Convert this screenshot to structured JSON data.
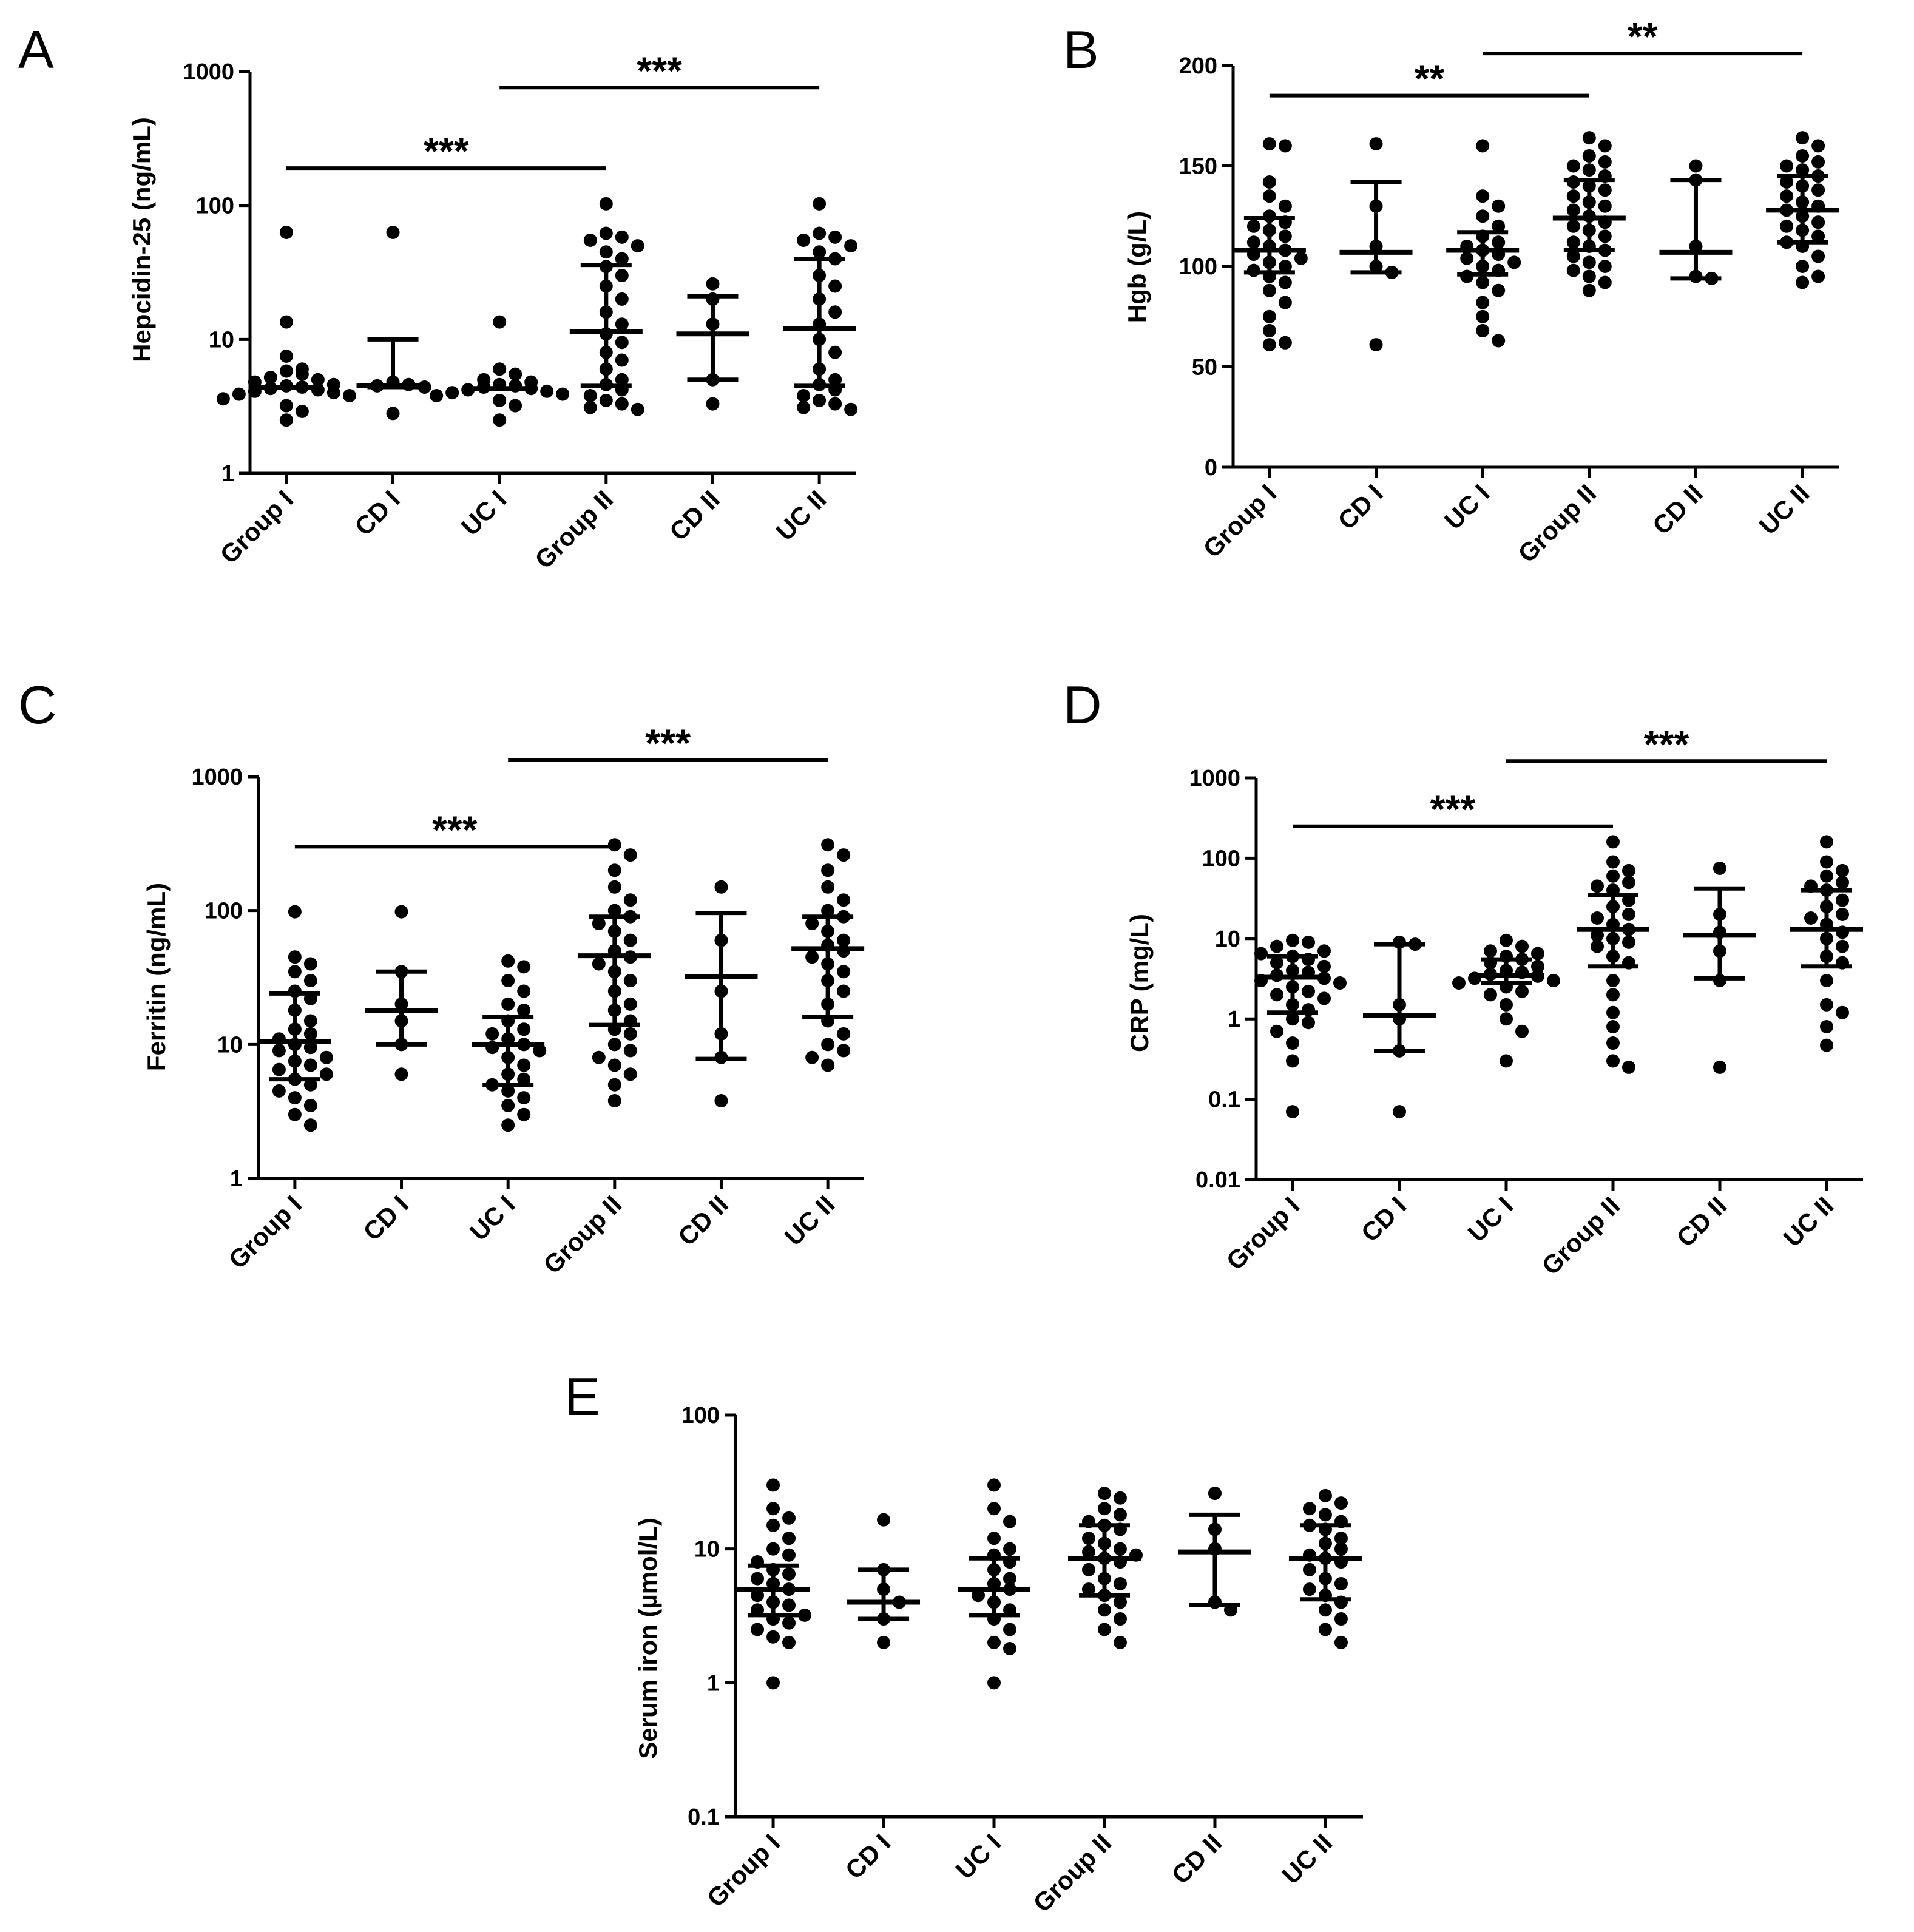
{
  "chart_data": [
    {
      "panel": "A",
      "type": "scatter",
      "ylabel": "Hepcidin-25 (ng/mL)",
      "yscale": "log",
      "ylim": [
        1,
        1000
      ],
      "yticks": [
        {
          "v": 1,
          "t": "1"
        },
        {
          "v": 10,
          "t": "10"
        },
        {
          "v": 100,
          "t": "100"
        },
        {
          "v": 1000,
          "t": "1000"
        }
      ],
      "categories": [
        "Group I",
        "CD I",
        "UC I",
        "Group II",
        "CD II",
        "UC II"
      ],
      "groups": [
        {
          "points": [
            63,
            13.5,
            7.5,
            6,
            5.8,
            5.5,
            5.2,
            5,
            4.8,
            4.6,
            4.5,
            4.4,
            4.3,
            4.2,
            4.1,
            4,
            3.9,
            3.8,
            3.6,
            3.2,
            2.9,
            2.5
          ],
          "median": 4.4,
          "q1": null,
          "q3": null
        },
        {
          "points": [
            63,
            4.8,
            4.6,
            4.5,
            4.4,
            2.8
          ],
          "median": 4.5,
          "q1": 4.4,
          "q3": 10
        },
        {
          "points": [
            13.5,
            6,
            5.5,
            5,
            4.8,
            4.6,
            4.5,
            4.4,
            4.3,
            4.2,
            4.1,
            4,
            3.9,
            3.8,
            3.5,
            3.2,
            2.5
          ],
          "median": 4.3,
          "q1": null,
          "q3": null
        },
        {
          "points": [
            103,
            62,
            58,
            55,
            50,
            45,
            40,
            35,
            30,
            25,
            20,
            16,
            13,
            11,
            9.5,
            8,
            7,
            6,
            5,
            4.6,
            4.2,
            3.8,
            3.5,
            3.3,
            3.1,
            3
          ],
          "median": 11.5,
          "q1": 4.5,
          "q3": 36
        },
        {
          "points": [
            26,
            20,
            13,
            5,
            3.3
          ],
          "median": 11,
          "q1": 5,
          "q3": 21
        },
        {
          "points": [
            103,
            62,
            58,
            55,
            50,
            45,
            40,
            30,
            25,
            20,
            16,
            13,
            10,
            8,
            6,
            5,
            4.6,
            4.2,
            3.8,
            3.5,
            3.3,
            3.1,
            3
          ],
          "median": 12,
          "q1": 4.5,
          "q3": 40
        }
      ],
      "brackets": [
        {
          "from": 0,
          "to": 3,
          "y": 190,
          "label": "***"
        },
        {
          "from": 2,
          "to": 5,
          "y": 760,
          "label": "***"
        }
      ]
    },
    {
      "panel": "B",
      "type": "scatter",
      "ylabel": "Hgb (g/L)",
      "yscale": "linear",
      "ylim": [
        0,
        200
      ],
      "yticks": [
        {
          "v": 0,
          "t": "0"
        },
        {
          "v": 50,
          "t": "50"
        },
        {
          "v": 100,
          "t": "100"
        },
        {
          "v": 150,
          "t": "150"
        },
        {
          "v": 200,
          "t": "200"
        }
      ],
      "categories": [
        "Group I",
        "CD I",
        "UC I",
        "Group II",
        "CD II",
        "UC II"
      ],
      "groups": [
        {
          "points": [
            161,
            160,
            142,
            135,
            130,
            125,
            122,
            120,
            118,
            115,
            112,
            110,
            108,
            106,
            104,
            102,
            100,
            98,
            95,
            92,
            88,
            82,
            75,
            68,
            62,
            61
          ],
          "median": 108,
          "q1": 97,
          "q3": 124
        },
        {
          "points": [
            161,
            130,
            110,
            100,
            97,
            61
          ],
          "median": 107,
          "q1": 97,
          "q3": 142
        },
        {
          "points": [
            160,
            135,
            130,
            125,
            120,
            115,
            112,
            110,
            108,
            106,
            104,
            102,
            100,
            98,
            95,
            92,
            88,
            82,
            75,
            68,
            63
          ],
          "median": 108,
          "q1": 96,
          "q3": 117
        },
        {
          "points": [
            164,
            160,
            155,
            152,
            150,
            148,
            145,
            142,
            140,
            138,
            135,
            132,
            130,
            128,
            125,
            122,
            120,
            118,
            115,
            112,
            110,
            108,
            105,
            102,
            100,
            98,
            95,
            92,
            88
          ],
          "median": 124,
          "q1": 108,
          "q3": 143
        },
        {
          "points": [
            150,
            143,
            110,
            95,
            94
          ],
          "median": 107,
          "q1": 94,
          "q3": 143
        },
        {
          "points": [
            164,
            160,
            155,
            152,
            150,
            148,
            145,
            142,
            140,
            138,
            135,
            132,
            130,
            128,
            125,
            122,
            120,
            118,
            115,
            112,
            110,
            105,
            100,
            95,
            92
          ],
          "median": 128,
          "q1": 112,
          "q3": 145
        }
      ],
      "brackets": [
        {
          "from": 0,
          "to": 3,
          "y": 185,
          "label": "**"
        },
        {
          "from": 2,
          "to": 5,
          "y": 206,
          "label": "**"
        }
      ]
    },
    {
      "panel": "C",
      "type": "scatter",
      "ylabel": "Ferritin (ng/mL)",
      "yscale": "log",
      "ylim": [
        1,
        1000
      ],
      "yticks": [
        {
          "v": 1,
          "t": "1"
        },
        {
          "v": 10,
          "t": "10"
        },
        {
          "v": 100,
          "t": "100"
        },
        {
          "v": 1000,
          "t": "1000"
        }
      ],
      "categories": [
        "Group I",
        "CD I",
        "UC I",
        "Group II",
        "CD II",
        "UC II"
      ],
      "groups": [
        {
          "points": [
            98,
            45,
            40,
            35,
            30,
            25,
            22,
            18,
            15,
            13,
            12,
            11,
            10,
            9.5,
            9,
            8,
            7.5,
            7,
            6.5,
            6,
            5.5,
            5,
            4.5,
            4,
            3.5,
            3,
            2.5
          ],
          "median": 10.5,
          "q1": 5.5,
          "q3": 24
        },
        {
          "points": [
            98,
            35,
            20,
            15,
            10,
            6
          ],
          "median": 18,
          "q1": 10,
          "q3": 35
        },
        {
          "points": [
            42,
            38,
            30,
            25,
            20,
            18,
            15,
            13,
            12,
            11,
            10,
            9.5,
            9,
            8,
            7,
            6,
            5.5,
            5,
            4.5,
            4,
            3.5,
            3,
            2.5
          ],
          "median": 10,
          "q1": 5,
          "q3": 16
        },
        {
          "points": [
            310,
            260,
            200,
            150,
            120,
            100,
            90,
            80,
            70,
            60,
            50,
            45,
            40,
            35,
            30,
            25,
            20,
            18,
            15,
            13,
            12,
            10,
            9,
            8,
            7,
            6,
            5,
            3.8
          ],
          "median": 46,
          "q1": 14,
          "q3": 90
        },
        {
          "points": [
            150,
            60,
            25,
            12,
            8,
            3.8
          ],
          "median": 32,
          "q1": 7.8,
          "q3": 96
        },
        {
          "points": [
            310,
            260,
            200,
            150,
            120,
            100,
            90,
            80,
            70,
            60,
            55,
            50,
            45,
            40,
            35,
            30,
            25,
            20,
            15,
            12,
            10,
            9,
            8,
            7
          ],
          "median": 52,
          "q1": 16,
          "q3": 90
        }
      ],
      "brackets": [
        {
          "from": 0,
          "to": 3,
          "y": 300,
          "label": "***"
        },
        {
          "from": 2,
          "to": 5,
          "y": 1330,
          "label": "***"
        }
      ]
    },
    {
      "panel": "D",
      "type": "scatter",
      "ylabel": "CRP (mg/L)",
      "yscale": "log",
      "ylim": [
        0.01,
        1000
      ],
      "yticks": [
        {
          "v": 0.01,
          "t": "0.01"
        },
        {
          "v": 0.1,
          "t": "0.1"
        },
        {
          "v": 1,
          "t": "1"
        },
        {
          "v": 10,
          "t": "10"
        },
        {
          "v": 100,
          "t": "100"
        },
        {
          "v": 1000,
          "t": "1000"
        }
      ],
      "categories": [
        "Group I",
        "CD I",
        "UC I",
        "Group II",
        "CD II",
        "UC II"
      ],
      "groups": [
        {
          "points": [
            9.5,
            9,
            8,
            7,
            6.5,
            6,
            5.5,
            5,
            4.5,
            4,
            3.8,
            3.5,
            3.2,
            3,
            2.8,
            2.5,
            2.2,
            2,
            1.8,
            1.5,
            1.3,
            1,
            0.9,
            0.7,
            0.5,
            0.3,
            0.07
          ],
          "median": 3.3,
          "q1": 1.2,
          "q3": 6
        },
        {
          "points": [
            9,
            8.5,
            1.5,
            1,
            0.4,
            0.07
          ],
          "median": 1.1,
          "q1": 0.4,
          "q3": 8.5
        },
        {
          "points": [
            9.5,
            8,
            7,
            6.5,
            6,
            5.5,
            5,
            4.5,
            4,
            3.8,
            3.6,
            3.4,
            3.2,
            3,
            2.8,
            2.5,
            2.2,
            2,
            1.5,
            1,
            0.7,
            0.3
          ],
          "median": 3.5,
          "q1": 2.8,
          "q3": 5.5
        },
        {
          "points": [
            160,
            90,
            70,
            60,
            50,
            45,
            40,
            30,
            25,
            20,
            18,
            15,
            13,
            11,
            10,
            9,
            8,
            6,
            5,
            3,
            2,
            1.2,
            0.8,
            0.5,
            0.3,
            0.25
          ],
          "median": 13,
          "q1": 4.5,
          "q3": 35
        },
        {
          "points": [
            75,
            20,
            12,
            7,
            3,
            0.25
          ],
          "median": 11,
          "q1": 3.2,
          "q3": 42
        },
        {
          "points": [
            160,
            90,
            70,
            60,
            50,
            45,
            40,
            30,
            25,
            20,
            18,
            15,
            12,
            10,
            8,
            6,
            5,
            3,
            1.5,
            1.2,
            0.8,
            0.47
          ],
          "median": 13,
          "q1": 4.5,
          "q3": 40
        }
      ],
      "brackets": [
        {
          "from": 0,
          "to": 3,
          "y": 250,
          "label": "***"
        },
        {
          "from": 2,
          "to": 5,
          "y": 1620,
          "label": "***"
        }
      ]
    },
    {
      "panel": "E",
      "type": "scatter",
      "ylabel": "Serum iron (µmol/L)",
      "yscale": "log",
      "ylim": [
        0.1,
        100
      ],
      "yticks": [
        {
          "v": 0.1,
          "t": "0.1"
        },
        {
          "v": 1,
          "t": "1"
        },
        {
          "v": 10,
          "t": "10"
        },
        {
          "v": 100,
          "t": "100"
        }
      ],
      "categories": [
        "Group I",
        "CD I",
        "UC I",
        "Group II",
        "CD II",
        "UC II"
      ],
      "groups": [
        {
          "points": [
            30,
            20,
            17,
            15,
            12,
            10,
            9,
            8,
            7,
            6.5,
            6,
            5.5,
            5,
            4.5,
            4,
            3.8,
            3.5,
            3.2,
            3,
            2.8,
            2.5,
            2.2,
            2,
            1
          ],
          "median": 5,
          "q1": 3.2,
          "q3": 7.5
        },
        {
          "points": [
            16.5,
            7,
            5,
            4,
            3,
            2
          ],
          "median": 4,
          "q1": 3,
          "q3": 7
        },
        {
          "points": [
            30,
            20,
            16,
            12,
            10,
            9,
            8,
            7,
            6,
            5.5,
            5,
            4.5,
            4,
            3.5,
            3,
            2.5,
            2,
            1.8,
            1
          ],
          "median": 5,
          "q1": 3.2,
          "q3": 8.5
        },
        {
          "points": [
            26,
            24,
            20,
            18,
            16,
            15,
            14,
            12,
            11,
            10,
            9.5,
            9,
            8.5,
            8,
            7,
            6,
            5.5,
            5,
            4.5,
            4,
            3.5,
            3,
            2.5,
            2
          ],
          "median": 8.5,
          "q1": 4.5,
          "q3": 15
        },
        {
          "points": [
            26,
            14,
            10,
            4,
            3.5
          ],
          "median": 9.5,
          "q1": 3.8,
          "q3": 18
        },
        {
          "points": [
            25,
            22,
            20,
            18,
            16,
            15,
            14,
            12,
            11,
            10,
            9,
            8.5,
            8,
            7,
            6,
            5.5,
            5,
            4.5,
            4,
            3.5,
            3,
            2.5,
            2
          ],
          "median": 8.5,
          "q1": 4.2,
          "q3": 15
        }
      ],
      "brackets": []
    }
  ]
}
